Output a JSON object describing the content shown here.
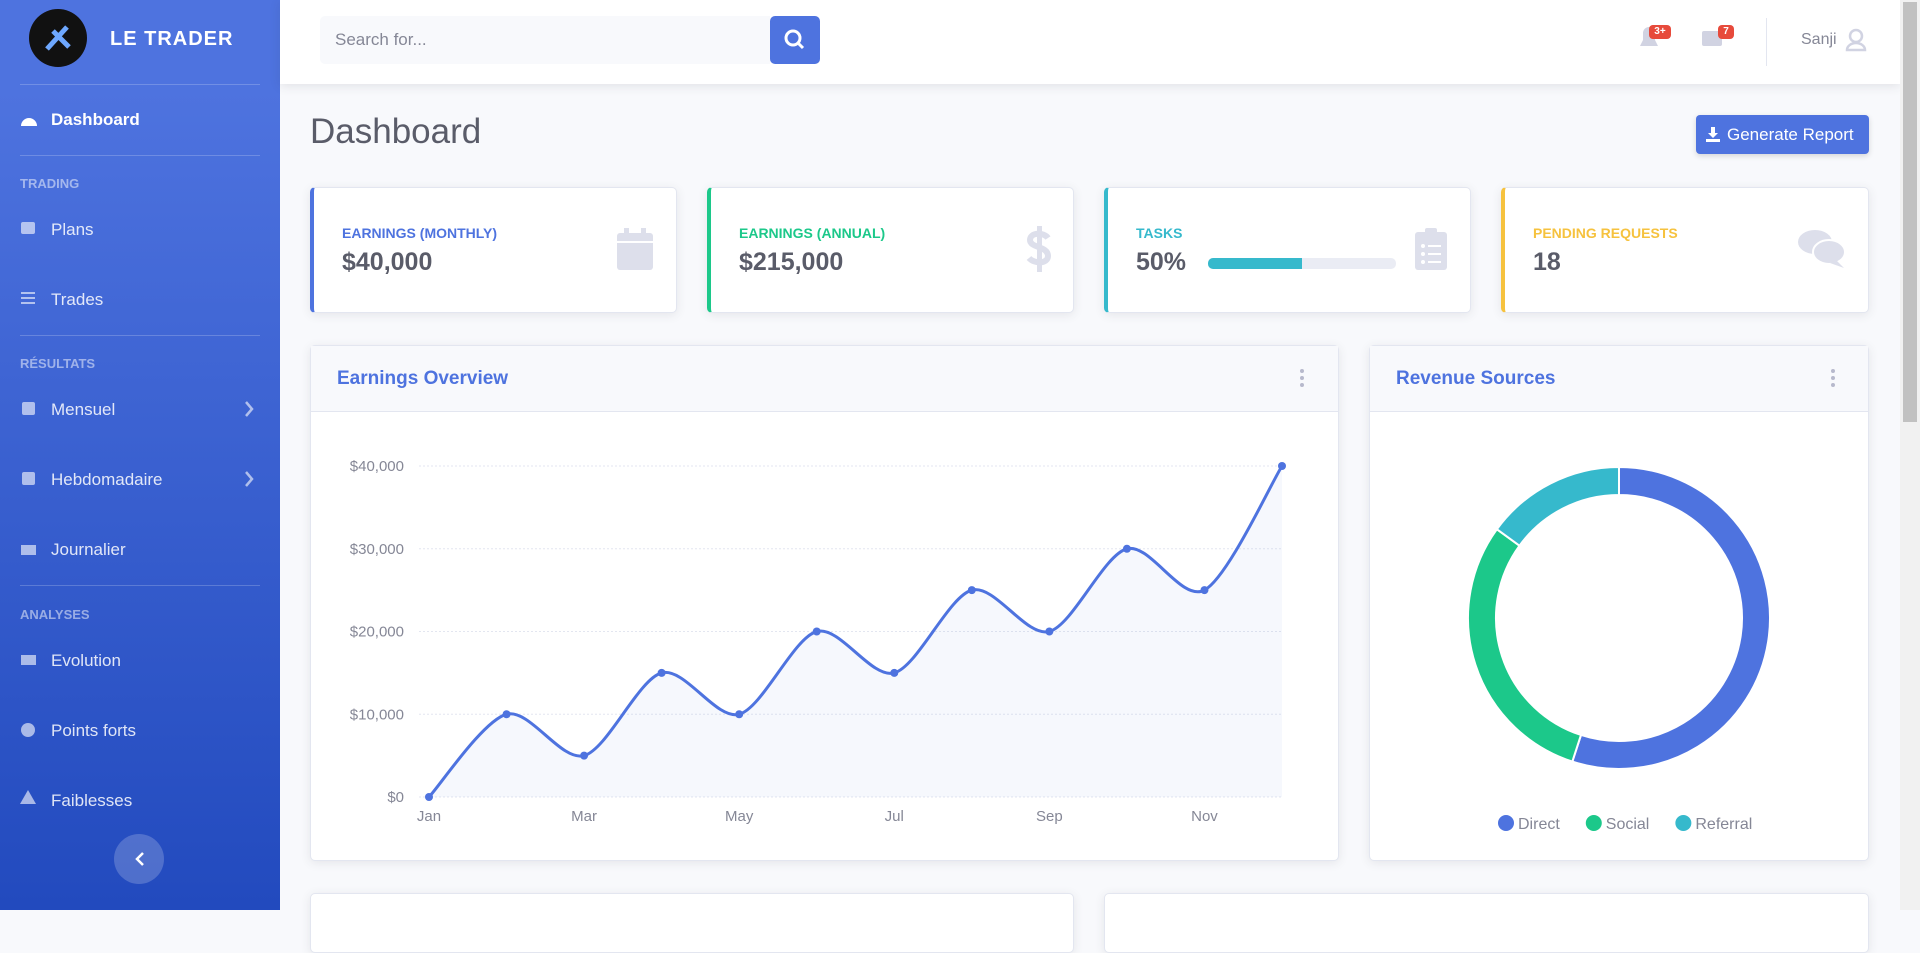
{
  "sidebar": {
    "brand": "LE TRADER",
    "dashboard": "Dashboard",
    "groups": [
      {
        "heading": "TRADING",
        "items": [
          "Plans",
          "Trades"
        ]
      },
      {
        "heading": "RÉSULTATS",
        "items": [
          "Mensuel",
          "Hebdomadaire",
          "Journalier"
        ]
      },
      {
        "heading": "ANALYSES",
        "items": [
          "Evolution",
          "Points forts",
          "Faiblesses"
        ]
      }
    ]
  },
  "topbar": {
    "search_placeholder": "Search for...",
    "alerts_badge": "3+",
    "messages_badge": "7",
    "user": "Sanji"
  },
  "page": {
    "title": "Dashboard",
    "button": "Generate Report"
  },
  "cards": [
    {
      "label": "EARNINGS (MONTHLY)",
      "value": "$40,000"
    },
    {
      "label": "EARNINGS (ANNUAL)",
      "value": "$215,000"
    },
    {
      "label": "TASKS",
      "value": 50,
      "value_label": "50%"
    },
    {
      "label": "PENDING REQUESTS",
      "value": 18
    }
  ],
  "chart_data": [
    {
      "type": "line",
      "title": "Earnings Overview",
      "categories": [
        "Jan",
        null,
        "Mar",
        null,
        "May",
        null,
        "Jul",
        null,
        "Sep",
        null,
        "Nov",
        null
      ],
      "values": [
        0,
        10000,
        5000,
        15000,
        10000,
        20000,
        15000,
        25000,
        20000,
        30000,
        25000,
        40000
      ],
      "color": "#4e73df",
      "ylim": [
        0,
        40000
      ],
      "yticks": [
        {
          "value": 0,
          "label": "$0"
        },
        {
          "value": 10000,
          "label": "$10,000"
        },
        {
          "value": 20000,
          "label": "$20,000"
        },
        {
          "value": 30000,
          "label": "$30,000"
        },
        {
          "value": 40000,
          "label": "$40,000"
        }
      ],
      "grid": true
    },
    {
      "type": "pie",
      "title": "Revenue Sources",
      "categories": [
        "Direct",
        "Social",
        "Referral"
      ],
      "values": [
        55,
        30,
        15
      ],
      "colors": [
        "#4e73df",
        "#1cc88a",
        "#36b9cc"
      ],
      "legend": "bottom"
    }
  ]
}
